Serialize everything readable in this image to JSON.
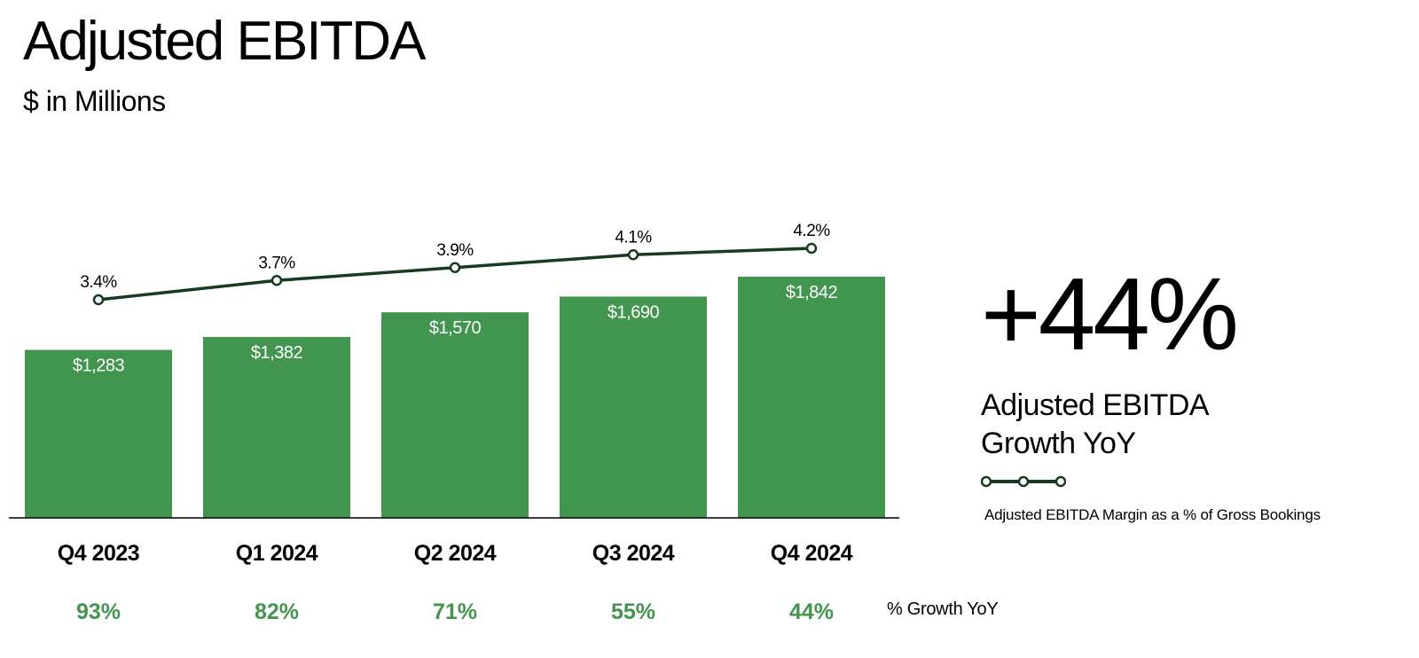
{
  "header": {
    "title": "Adjusted EBITDA",
    "subtitle": "$ in Millions"
  },
  "highlight": {
    "value": "+44%",
    "label": "Adjusted EBITDA Growth YoY"
  },
  "legend": {
    "line_label": "Adjusted EBITDA Margin as a % of Gross Bookings"
  },
  "growth_row_label": "% Growth YoY",
  "colors": {
    "bar": "#42954F",
    "line": "#173A20",
    "growth_text": "#42954F",
    "bar_label": "#FFFFFF"
  },
  "chart_data": {
    "type": "bar",
    "categories": [
      "Q4 2023",
      "Q1 2024",
      "Q2 2024",
      "Q3 2024",
      "Q4 2024"
    ],
    "series": [
      {
        "type": "bar",
        "values": [
          1283,
          1382,
          1570,
          1690,
          1842
        ],
        "labels": [
          "$1,283",
          "$1,382",
          "$1,570",
          "$1,690",
          "$1,842"
        ]
      },
      {
        "type": "line",
        "name": "Adjusted EBITDA Margin as a % of Gross Bookings",
        "values": [
          3.4,
          3.7,
          3.9,
          4.1,
          4.2
        ],
        "labels": [
          "3.4%",
          "3.7%",
          "3.9%",
          "4.1%",
          "4.2%"
        ]
      }
    ],
    "growth_yoy": [
      "93%",
      "82%",
      "71%",
      "55%",
      "44%"
    ],
    "title": "Adjusted EBITDA",
    "subtitle": "$ in Millions",
    "ylim": [
      0,
      1842
    ],
    "grid": false
  }
}
